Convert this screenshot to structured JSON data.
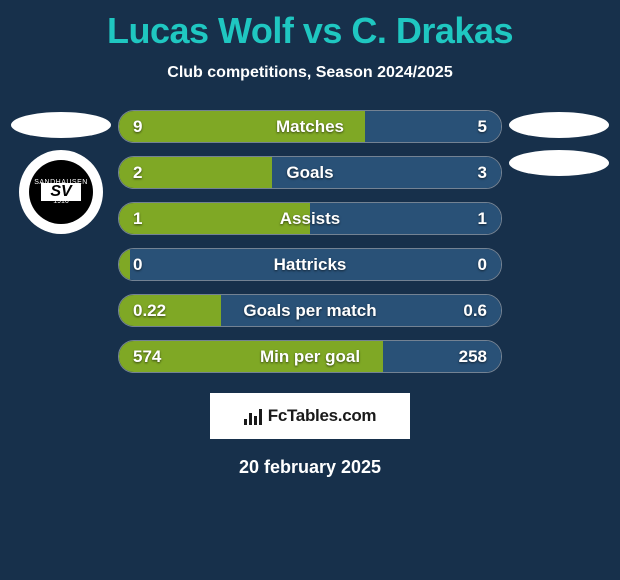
{
  "title": "Lucas Wolf vs C. Drakas",
  "subtitle": "Club competitions, Season 2024/2025",
  "title_color": "#1fc7c1",
  "background_color": "#17304b",
  "left_bar_color": "#7fa825",
  "right_bar_color": "#295177",
  "player_left": {
    "club_primary": "SANDHAUSEN",
    "club_year": "1916",
    "club_initials": "SV"
  },
  "stats": [
    {
      "label": "Matches",
      "left_value": "9",
      "right_value": "5",
      "left_percent": 64.3
    },
    {
      "label": "Goals",
      "left_value": "2",
      "right_value": "3",
      "left_percent": 40.0
    },
    {
      "label": "Assists",
      "left_value": "1",
      "right_value": "1",
      "left_percent": 50.0
    },
    {
      "label": "Hattricks",
      "left_value": "0",
      "right_value": "0",
      "left_percent": 3.0
    },
    {
      "label": "Goals per match",
      "left_value": "0.22",
      "right_value": "0.6",
      "left_percent": 26.8
    },
    {
      "label": "Min per goal",
      "left_value": "574",
      "right_value": "258",
      "left_percent": 69.0
    }
  ],
  "watermark": "FcTables.com",
  "date": "20 february 2025"
}
